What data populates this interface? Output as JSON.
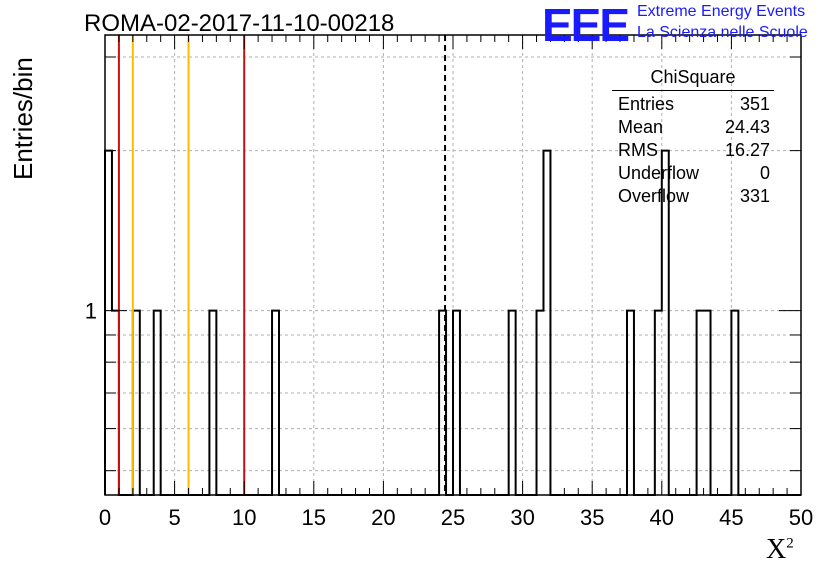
{
  "title": "ROMA-02-2017-11-10-00218",
  "logo": {
    "mark": "EEE",
    "line1": "Extreme Energy Events",
    "line2": "La Scienza nelle Scuole",
    "color": "#1a1aff"
  },
  "stats_box": {
    "title": "ChiSquare",
    "rows": [
      {
        "label": "Entries",
        "value": "351"
      },
      {
        "label": "Mean",
        "value": "24.43"
      },
      {
        "label": "RMS",
        "value": "16.27"
      },
      {
        "label": "Underflow",
        "value": "0"
      },
      {
        "label": "Overflow",
        "value": "331"
      }
    ]
  },
  "chart_data": {
    "type": "histogram",
    "title": "ROMA-02-2017-11-10-00218",
    "xlabel": "X",
    "xlabel_superscript": "2",
    "ylabel": "Entries/bin",
    "xlim": [
      0,
      50
    ],
    "ylim": [
      0.45,
      3.3
    ],
    "log_y": true,
    "grid": true,
    "bin_width": 0.5,
    "x_ticks": [
      0,
      5,
      10,
      15,
      20,
      25,
      30,
      35,
      40,
      45,
      50
    ],
    "y_ticks": [
      1
    ],
    "bins": [
      {
        "x": 0.0,
        "count": 2
      },
      {
        "x": 0.5,
        "count": 1
      },
      {
        "x": 2.0,
        "count": 1
      },
      {
        "x": 3.5,
        "count": 1
      },
      {
        "x": 7.5,
        "count": 1
      },
      {
        "x": 12.0,
        "count": 1
      },
      {
        "x": 24.0,
        "count": 1
      },
      {
        "x": 25.0,
        "count": 1
      },
      {
        "x": 29.0,
        "count": 1
      },
      {
        "x": 31.0,
        "count": 1
      },
      {
        "x": 31.5,
        "count": 2
      },
      {
        "x": 37.5,
        "count": 1
      },
      {
        "x": 39.5,
        "count": 1
      },
      {
        "x": 40.0,
        "count": 2
      },
      {
        "x": 42.5,
        "count": 1
      },
      {
        "x": 43.0,
        "count": 1
      },
      {
        "x": 45.0,
        "count": 1
      }
    ],
    "vertical_lines": [
      {
        "x": 1.0,
        "color": "#cc1111",
        "style": "solid"
      },
      {
        "x": 2.0,
        "color": "#ffbb00",
        "style": "solid"
      },
      {
        "x": 6.0,
        "color": "#ffbb00",
        "style": "solid"
      },
      {
        "x": 10.0,
        "color": "#cc1111",
        "style": "solid"
      },
      {
        "x": 24.43,
        "color": "#000000",
        "style": "dashed"
      }
    ]
  }
}
